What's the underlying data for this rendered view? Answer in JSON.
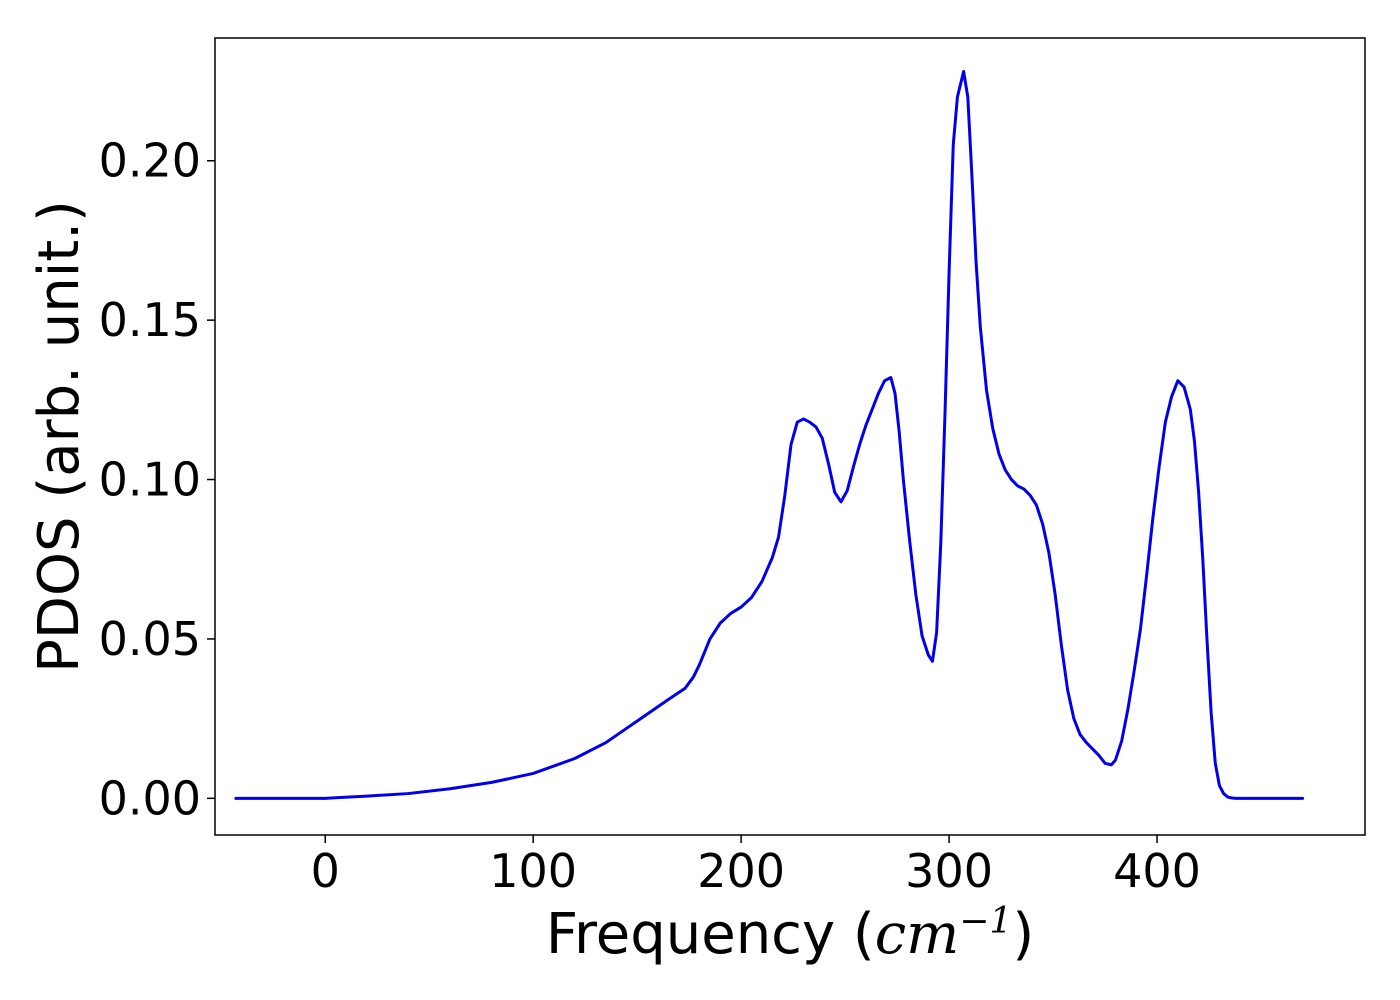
{
  "chart_data": {
    "type": "line",
    "xlabel_prefix": "Frequency (",
    "xlabel_unit_base": "cm",
    "xlabel_unit_exp": "−1",
    "xlabel_suffix": ")",
    "ylabel": "PDOS (arb. unit.)",
    "xlim": [
      -53,
      500
    ],
    "ylim": [
      -0.0115,
      0.2385
    ],
    "xticks": [
      {
        "value": 0,
        "label": "0"
      },
      {
        "value": 100,
        "label": "100"
      },
      {
        "value": 200,
        "label": "200"
      },
      {
        "value": 300,
        "label": "300"
      },
      {
        "value": 400,
        "label": "400"
      }
    ],
    "yticks": [
      {
        "value": 0.0,
        "label": "0.00"
      },
      {
        "value": 0.05,
        "label": "0.05"
      },
      {
        "value": 0.1,
        "label": "0.10"
      },
      {
        "value": 0.15,
        "label": "0.15"
      },
      {
        "value": 0.2,
        "label": "0.20"
      }
    ],
    "grid": false,
    "series": [
      {
        "color": "#0000ee",
        "x": [
          -43,
          0,
          5,
          20,
          40,
          60,
          80,
          100,
          120,
          135,
          145,
          155,
          165,
          173,
          177,
          180,
          185,
          190,
          195,
          200,
          205,
          210,
          215,
          218,
          221,
          224,
          227,
          230,
          233,
          236,
          239,
          242,
          245,
          248,
          251,
          254,
          257,
          260,
          263,
          266,
          269,
          272,
          274,
          276,
          278,
          281,
          284,
          287,
          290,
          292,
          294,
          296,
          298,
          300,
          302,
          304,
          307,
          309,
          311,
          313,
          315,
          318,
          321,
          324,
          327,
          330,
          333,
          336,
          339,
          342,
          345,
          348,
          351,
          354,
          357,
          360,
          363,
          366,
          369,
          372,
          375,
          378,
          380,
          383,
          386,
          389,
          392,
          395,
          398,
          401,
          404,
          407,
          410,
          413,
          416,
          418,
          420,
          422,
          424,
          426,
          428,
          430,
          432,
          434,
          436,
          438,
          440,
          442,
          445,
          450,
          460,
          470
        ],
        "y": [
          0.0,
          0.0,
          0.0002,
          0.0007,
          0.0015,
          0.003,
          0.005,
          0.0078,
          0.0125,
          0.0175,
          0.022,
          0.0265,
          0.031,
          0.0345,
          0.038,
          0.042,
          0.05,
          0.055,
          0.058,
          0.06,
          0.063,
          0.068,
          0.0755,
          0.082,
          0.095,
          0.111,
          0.118,
          0.119,
          0.118,
          0.1165,
          0.113,
          0.105,
          0.096,
          0.093,
          0.0965,
          0.104,
          0.111,
          0.117,
          0.122,
          0.127,
          0.131,
          0.132,
          0.127,
          0.115,
          0.1,
          0.081,
          0.064,
          0.051,
          0.045,
          0.043,
          0.052,
          0.08,
          0.12,
          0.165,
          0.205,
          0.22,
          0.228,
          0.22,
          0.195,
          0.168,
          0.148,
          0.128,
          0.116,
          0.108,
          0.103,
          0.1,
          0.098,
          0.097,
          0.095,
          0.092,
          0.086,
          0.077,
          0.064,
          0.048,
          0.034,
          0.025,
          0.02,
          0.0175,
          0.0155,
          0.0135,
          0.011,
          0.0105,
          0.012,
          0.018,
          0.028,
          0.04,
          0.053,
          0.07,
          0.088,
          0.104,
          0.118,
          0.126,
          0.131,
          0.129,
          0.122,
          0.112,
          0.096,
          0.075,
          0.05,
          0.027,
          0.011,
          0.004,
          0.0015,
          0.0004,
          0.0001,
          0.0,
          0.0,
          0.0,
          0.0,
          0.0,
          0.0,
          0.0
        ]
      }
    ]
  }
}
